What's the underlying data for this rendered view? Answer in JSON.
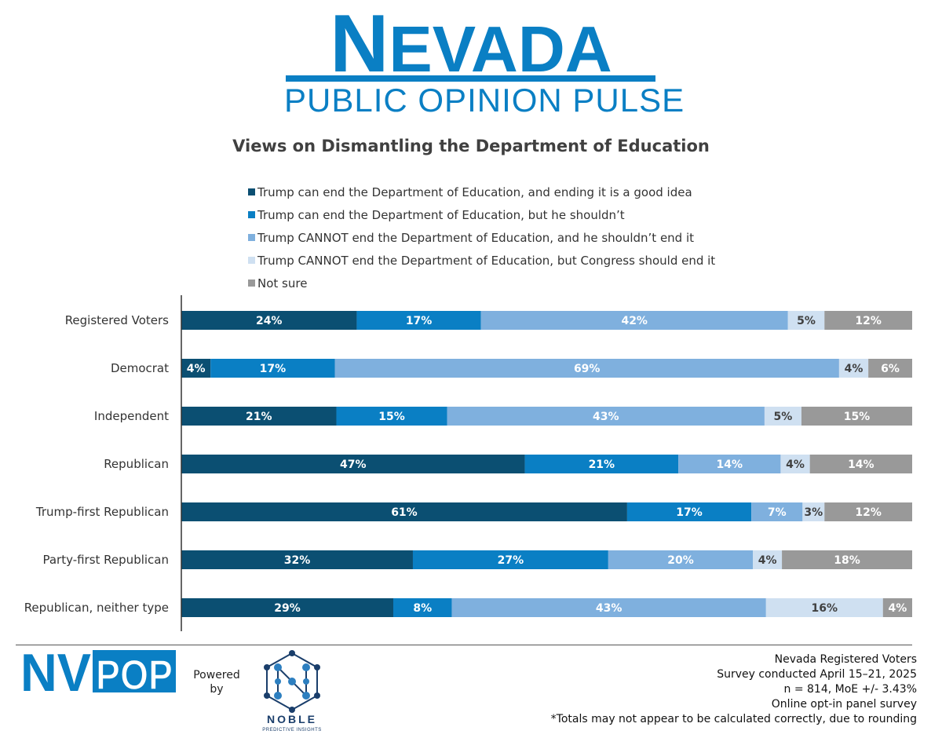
{
  "header": {
    "logo_initial": "N",
    "logo_rest": "EVADA",
    "logo_subtitle": "PUBLIC OPINION PULSE"
  },
  "colors": {
    "brand_blue": "#0a7fc4",
    "good_idea": "#0b4f72",
    "shouldnt": "#0a7fc4",
    "cannot_shouldnt": "#7fb0de",
    "congress": "#cfe0f1",
    "not_sure": "#999999"
  },
  "chart_data": {
    "type": "bar",
    "orientation": "horizontal",
    "stacked": true,
    "title": "Views on Dismantling the Department of Education",
    "categories": [
      "Registered Voters",
      "Democrat",
      "Independent",
      "Republican",
      "Trump-first Republican",
      "Party-first Republican",
      "Republican, neither type"
    ],
    "series": [
      {
        "name": "Trump can end the Department of Education, and ending it is a good idea",
        "color": "#0b4f72",
        "values": [
          24,
          4,
          21,
          47,
          61,
          32,
          29
        ]
      },
      {
        "name": "Trump can end the Department of Education, but he shouldn’t",
        "color": "#0a7fc4",
        "values": [
          17,
          17,
          15,
          21,
          17,
          27,
          8
        ]
      },
      {
        "name": "Trump CANNOT end the Department of Education, and he shouldn’t end it",
        "color": "#7fb0de",
        "values": [
          42,
          69,
          43,
          14,
          7,
          20,
          43
        ]
      },
      {
        "name": "Trump CANNOT end the Department of Education, but Congress should end it",
        "color": "#cfe0f1",
        "values": [
          5,
          4,
          5,
          4,
          3,
          4,
          16
        ]
      },
      {
        "name": "Not sure",
        "color": "#999999",
        "values": [
          12,
          6,
          15,
          14,
          12,
          18,
          4
        ]
      }
    ],
    "value_suffix": "%",
    "grid": false,
    "legend": "top"
  },
  "footer": {
    "nvpop_left": "NV",
    "nvpop_right": "POP",
    "powered_by": "Powered by",
    "noble_name": "NOBLE",
    "noble_tagline": "PREDICTIVE INSIGHTS",
    "notes": [
      "Nevada Registered Voters",
      "Survey conducted April 15–21, 2025",
      "n = 814, MoE +/- 3.43%",
      "Online opt-in panel survey",
      "*Totals may not appear to be calculated correctly, due to rounding"
    ]
  }
}
